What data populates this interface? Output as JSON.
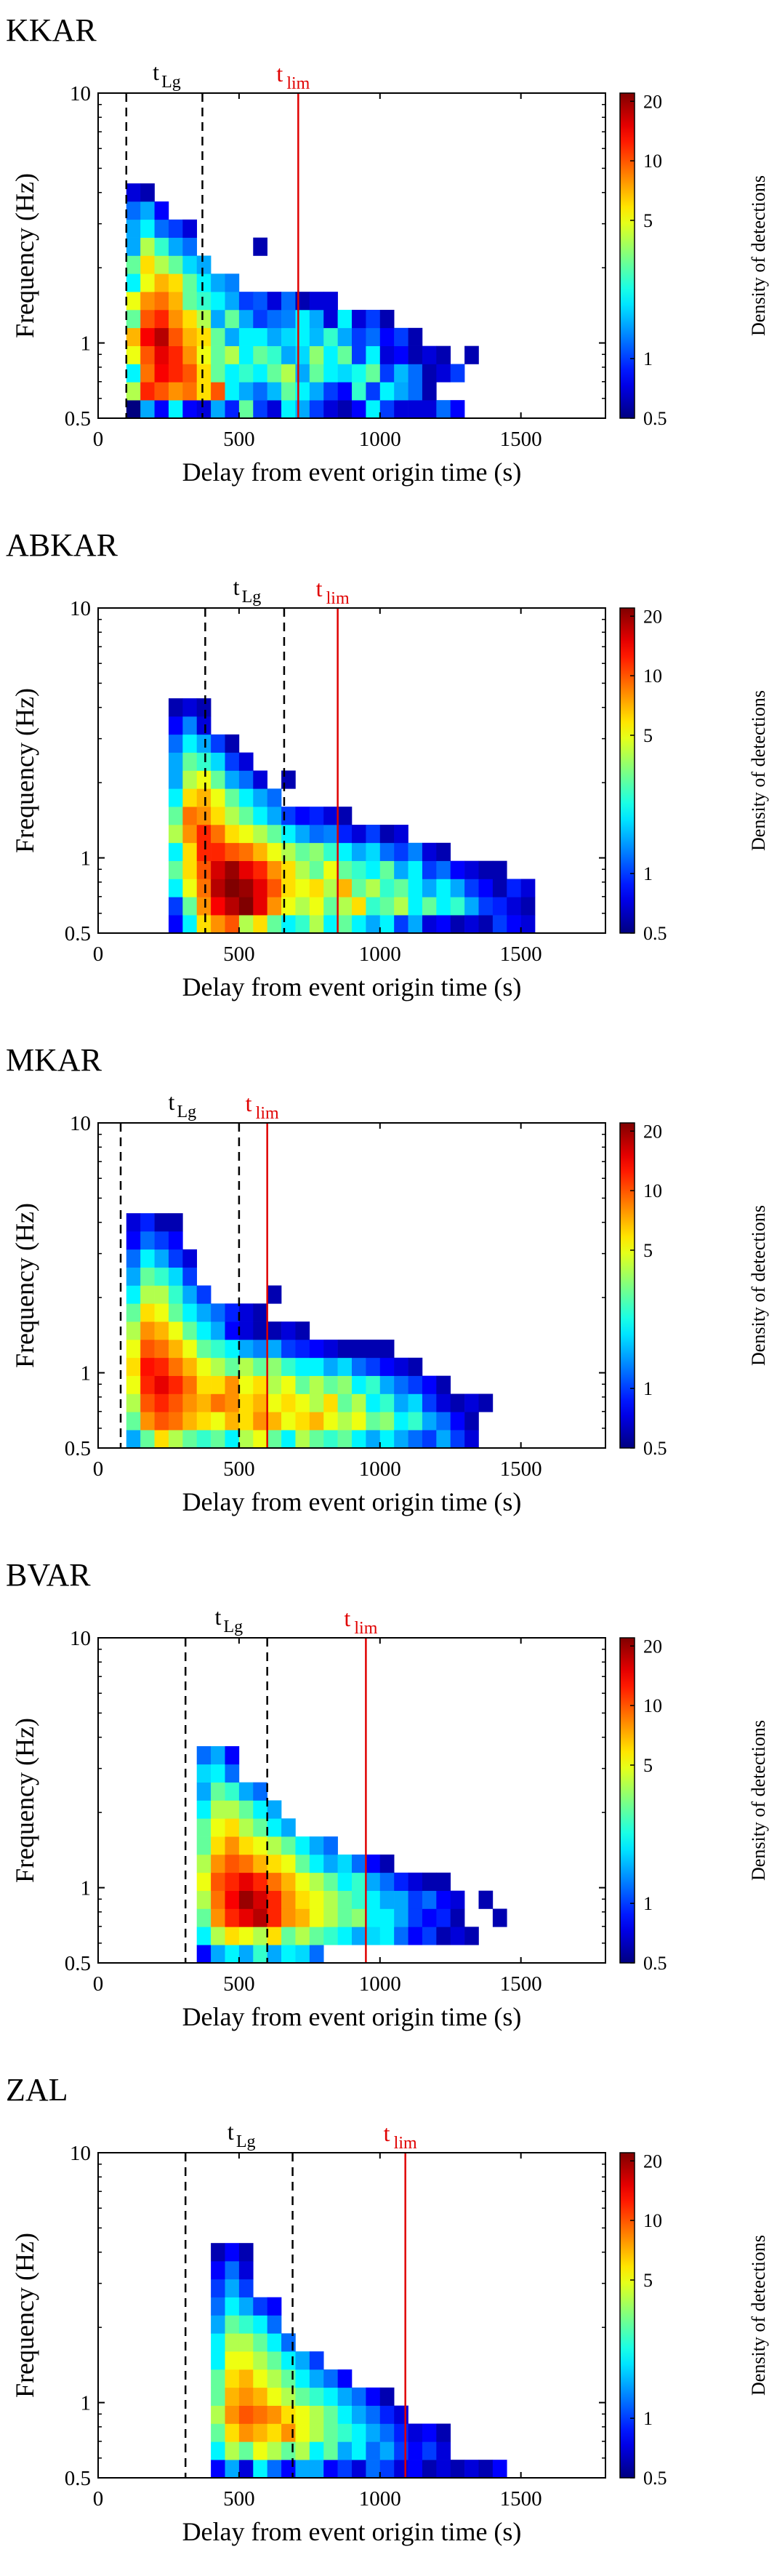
{
  "colorbar": {
    "label": "Density of detections",
    "ticks": [
      "0.5",
      "1",
      "5",
      "10",
      "20"
    ],
    "tick_values": [
      0.5,
      1,
      5,
      10,
      20
    ],
    "range": [
      0.5,
      22
    ]
  },
  "chart_data": [
    {
      "type": "heatmap",
      "title": "KKAR",
      "xlabel": "Delay from event origin time (s)",
      "ylabel": "Frequency (Hz)",
      "xlim": [
        0,
        1800
      ],
      "ylim": [
        0.5,
        10
      ],
      "yscale": "log",
      "xticks": [
        "0",
        "500",
        "1000",
        "1500"
      ],
      "yticks": [
        "0.5",
        "1",
        "10"
      ],
      "t_lg": [
        100,
        370
      ],
      "t_lim": 710,
      "t_lg_label": "t",
      "t_lg_sub": "Lg",
      "t_lim_label": "t",
      "t_lim_sub": "lim",
      "cells_by_row_from_0.5Hz": [
        "0:0,1:1.5,2:0.8,3:2,4:0.8,5:0.7,6:1.5,7:0.9,8:3,9:1,10:0.7,11:2,12:1.5,13:1,14:0.7,15:0.6,16:0.8,17:2,18:1,19:0.7,20:0.7,21:0.7,22:1.2,23:0.8",
        "0:4,1:12,2:10,3:8,4:9,5:6,6:10,7:2,8:1.5,9:1.2,10:1.6,11:3,12:2,13:1.5,14:1,15:0.8,16:2.5,17:1,18:2,19:1.5,20:1.2,21:0.6",
        "0:2,1:9,2:14,3:12,4:10,5:6,6:3,7:2,8:2.5,9:2,10:3,11:4,12:1.5,13:3,14:2,15:1.8,16:2.2,17:3,18:1,19:1.6,20:1.2,21:0.6,22:0.7,23:1",
        "0:5,1:10,2:15,3:12,4:8,5:5,6:3,7:4,8:2,9:3,10:2.5,11:1.5,12:1.8,13:3.5,14:2,15:3,16:1,17:2,18:0.7,19:0.8,20:0.6,21:0.7,22:0.6,24:0.6",
        "0:7,1:14,2:18,3:10,4:7,5:6,6:3,7:1.5,8:2,9:2,10:1.5,11:1.8,12:2,13:1.6,14:2.5,15:1.5,16:1,17:1.2,18:0.8,19:1,20:0.6",
        "0:3,1:10,2:12,3:8,4:6,5:4,6:1.5,7:3,8:1.5,9:1,10:1.2,11:1.3,12:2,13:1.5,14:0.7,15:2,16:0.7,17:1,18:0.6",
        "0:5,1:8,2:9,3:7,4:3,5:2.5,6:2,7:1.5,8:1,9:1.1,10:0.7,11:1.2,12:0.6,13:0.7,14:0.7",
        "0:2,1:5,2:7,3:6,4:3,5:2,6:1.5,7:1.3",
        "0:3,1:6,2:4,3:3,4:1.8,5:1.5",
        "0:1.5,1:4,2:2.5,3:1.5,4:1.2,9:0.6",
        "0:1.5,1:2,2:1.2,3:1,4:0.7",
        "0:1.2,1:1.5,2:0.8",
        "0:0.7,1:0.6"
      ],
      "x0": 100,
      "grid_visible": false,
      "legend": "colorbar right"
    },
    {
      "type": "heatmap",
      "title": "ABKAR",
      "xlabel": "Delay from event origin time (s)",
      "ylabel": "Frequency (Hz)",
      "xlim": [
        0,
        1800
      ],
      "ylim": [
        0.5,
        10
      ],
      "yscale": "log",
      "xticks": [
        "0",
        "500",
        "1000",
        "1500"
      ],
      "yticks": [
        "0.5",
        "1",
        "10"
      ],
      "t_lg": [
        380,
        660
      ],
      "t_lim": 850,
      "t_lg_label": "t",
      "t_lg_sub": "Lg",
      "t_lim_label": "t",
      "t_lim_sub": "lim",
      "cells_by_row_from_0.5Hz": [
        "3:0.8,4:2,5:6,6:8,7:10,8:4,9:6,10:3,11:2,12:2.5,13:4,14:2,15:3,16:2,17:1.5,18:2,19:1,20:1.5,21:0.7,22:0.8,23:0.6,24:0.7,25:0.6,26:1,27:0.8,28:0.7",
        "3:1,4:3,5:8,6:14,7:18,8:22,9:15,10:8,11:5,12:4,13:5,14:3,15:4,16:6,17:2.5,18:3,19:4,20:2,21:3,22:2,23:2.5,24:1.5,25:1,26:0.9,27:0.7,28:0.6",
        "3:2,4:5,5:9,6:18,7:22,8:20,9:15,10:10,11:6,12:5,13:6,14:4,15:7,16:3,17:4,18:2.5,19:3,20:2,21:1.5,22:2,23:1.5,24:1,25:0.8,26:0.6,27:0.9,28:0.7",
        "3:3,4:6,5:10,6:16,7:20,8:15,9:12,10:8,11:6,12:4,13:3,14:5,15:3,16:2.5,17:2,18:3,19:1.5,20:2,21:1,22:1.2,23:0.8,24:0.7,25:0.6,26:0.6",
        "3:2,4:6,5:12,6:12,7:10,8:9,9:7,10:5,11:4,12:3,13:3.5,14:2.5,15:2,16:1.5,17:1.8,18:1.2,19:1,20:1.3,21:0.7,22:0.6",
        "3:4,4:8,5:12,6:9,7:6,8:5,9:4,10:3,11:2,12:1.5,13:1.2,14:1.3,15:0.9,16:0.7,17:1,18:0.6,19:0.7",
        "3:3,4:9,5:8,6:6,7:4,8:3,9:2,10:1.5,11:1,12:0.8,13:0.9,14:0.7,15:0.6",
        "3:2,4:6,5:7,6:5,7:3,8:2,9:1.5,10:1.2",
        "3:1.5,4:4,5:5,6:3,7:1.5,8:1.2,9:0.7,11:0.6",
        "3:1.5,4:3,5:2.5,6:1.8,7:1,8:0.7",
        "3:1.2,4:2,5:1.5,6:1,7:0.6",
        "3:0.8,4:1.3,5:0.7",
        "3:0.6,4:0.7,5:0.6"
      ],
      "x0": 100,
      "grid_visible": false,
      "legend": "colorbar right"
    },
    {
      "type": "heatmap",
      "title": "MKAR",
      "xlabel": "Delay from event origin time (s)",
      "ylabel": "Frequency (Hz)",
      "xlim": [
        0,
        1800
      ],
      "ylim": [
        0.5,
        10
      ],
      "yscale": "log",
      "xticks": [
        "0",
        "500",
        "1000",
        "1500"
      ],
      "yticks": [
        "0.5",
        "1",
        "10"
      ],
      "t_lg": [
        80,
        500
      ],
      "t_lim": 600,
      "t_lg_label": "t",
      "t_lg_sub": "Lg",
      "t_lim_label": "t",
      "t_lim_sub": "lim",
      "cells_by_row_from_0.5Hz": [
        "0:1.5,1:3,2:6,3:4,4:3,5:2.5,6:3,7:2,8:4,9:5,10:3,11:2,12:4,13:3,14:2.5,15:3,16:2,17:1.5,18:2,19:1.5,20:1.2,21:1,22:1.5,23:1,24:0.7",
        "0:3,1:8,2:10,3:9,4:7,5:6,6:5,7:7,8:6,9:8,10:7,11:5,12:6,13:7,14:5,15:4,16:5,17:3,18:3.5,19:2,20:2.5,21:1.5,22:1.2,23:0.8,24:0.6",
        "0:4,1:10,2:12,3:10,4:8,5:7,6:9,7:8,8:6,9:7,10:5,11:6,12:5,13:4,14:6,15:3,16:4,17:2,18:2.5,19:1.5,20:1.8,21:1,22:0.7,23:0.6,24:0.7,25:0.6",
        "0:5,1:12,2:15,3:12,4:9,5:6,6:6,7:8,8:5,9:6,10:4,11:5,12:3,13:4,14:3,15:3.5,16:2,17:2.5,18:1.5,19:1.2,20:1,21:0.8,22:0.6",
        "0:6,1:13,2:12,3:9,4:7,5:5,6:4,7:3,8:4,9:3,10:3.5,11:2.5,12:2,13:2,14:1.5,15:1.8,16:1.2,17:1,18:0.8,19:0.7,20:0.6",
        "0:5,1:10,2:9,3:7,4:5,5:3,6:2.5,7:2,8:1.5,9:1.3,10:1.5,11:1,12:0.9,13:0.8,14:0.7,15:0.6,16:0.6,17:0.6,18:0.6",
        "0:4,1:8,2:7,3:5,4:3,5:2,6:1.5,7:0.8,8:0.7,9:0.6,10:0.6,11:0.7,12:0.6",
        "0:3,1:6,2:5,3:3,4:2,5:1.5,6:1.2,7:0.9,8:0.7,9:0.6",
        "0:2,1:4,2:4,3:2.5,4:1.5,5:1,10:0.6",
        "0:1.5,1:3,2:2.5,3:1.8,4:1",
        "0:1.2,1:2,2:1.5,3:1,4:0.7",
        "0:0.8,1:1.2,2:1,3:0.8",
        "0:0.7,1:0.9,2:0.6,3:0.6"
      ],
      "x0": 100,
      "grid_visible": false,
      "legend": "colorbar right"
    },
    {
      "type": "heatmap",
      "title": "BVAR",
      "xlabel": "Delay from event origin time (s)",
      "ylabel": "Frequency (Hz)",
      "xlim": [
        0,
        1800
      ],
      "ylim": [
        0.5,
        10
      ],
      "yscale": "log",
      "xticks": [
        "0",
        "500",
        "1000",
        "1500"
      ],
      "yticks": [
        "0.5",
        "1",
        "10"
      ],
      "t_lg": [
        310,
        600
      ],
      "t_lim": 950,
      "t_lg_label": "t",
      "t_lg_sub": "Lg",
      "t_lim_label": "t",
      "t_lim_sub": "lim",
      "cells_by_row_from_0.5Hz": [
        "5:0.8,6:1.5,7:2,8:1.5,9:2.5,10:1.5,11:2,12:1.8,13:1.2",
        "5:2,6:4,7:6,8:5,9:4,10:6,11:3,12:4,13:3,14:2.5,15:2,16:1.5,17:1.8,18:2,19:1.2,20:0.8,21:1,22:0.6,23:0.7,24:0.6",
        "5:3,6:8,7:12,8:15,9:18,10:12,11:8,12:7,13:5,14:4,15:3,16:3.5,17:2,18:2,19:1.5,20:1,21:0.8,22:0.9,23:0.6,26:0.6",
        "5:4,6:9,7:14,8:20,9:16,10:12,11:8,12:6,13:5,14:4,15:3,16:2.5,17:2,18:1.5,19:1.5,20:1,21:1.2,22:0.8,23:0.7,25:0.6",
        "5:5,6:10,7:12,8:15,9:12,10:9,11:7,12:5,13:4,14:3,15:2,16:2.5,17:1.5,18:1.2,19:0.9,20:0.7,21:0.6,22:0.6",
        "5:4,6:8,7:10,8:9,9:7,10:6,11:5,12:3,13:2,14:1.5,15:1.8,16:1.2,17:0.8,18:0.6",
        "5:3,6:6,7:8,8:6,9:5,10:4,11:3,12:2,13:1.5,14:1.2",
        "5:3,6:5,7:6,8:4,9:3,10:2,11:1.5",
        "5:2,6:4,7:4,8:3,9:2,10:1.5",
        "5:1.5,6:3,7:2.5,8:1.5,9:1.2",
        "5:1.8,6:2,7:1.2",
        "5:1.2,6:1.5,7:0.8"
      ],
      "x0": 100,
      "grid_visible": false,
      "legend": "colorbar right"
    },
    {
      "type": "heatmap",
      "title": "ZAL",
      "xlabel": "Delay from event origin time (s)",
      "ylabel": "Frequency (Hz)",
      "xlim": [
        0,
        1800
      ],
      "ylim": [
        0.5,
        10
      ],
      "yscale": "log",
      "xticks": [
        "0",
        "500",
        "1000",
        "1500"
      ],
      "yticks": [
        "0.5",
        "1",
        "10"
      ],
      "t_lg": [
        310,
        690
      ],
      "t_lim": 1090,
      "t_lg_label": "t",
      "t_lg_sub": "Lg",
      "t_lim_label": "t",
      "t_lim_sub": "lim",
      "cells_by_row_from_0.5Hz": [
        "6:0.8,7:1.5,8:0.7,9:2,10:1.2,11:0.8,12:1.5,13:1.5,14:0.8,15:1,16:0.7,17:1.2,18:1,19:0.7,20:0.8,21:0.6,22:0.7,23:0.6,24:0.7,25:0.6,26:0.8",
        "6:2,7:4,8:3,9:5,10:4,11:3,12:4,13:2,14:3,15:1.5,16:2,17:1.2,18:1.5,19:1,20:0.8,21:1,22:0.7",
        "6:3,7:6,8:8,9:7,10:6,11:8,12:5,13:4,14:3,15:2.5,16:2,17:1.5,18:1.2,19:0.9,20:0.7,21:0.8,22:0.6",
        "6:4,7:8,8:10,9:9,10:8,11:6,12:5,13:4,14:3,15:2,16:1.5,17:1.2,18:0.9,19:0.7",
        "6:3,7:7,8:8,9:7,10:5,11:4,12:3,13:2.5,14:2,15:1.5,16:1.2,17:0.8,18:0.6",
        "6:3,7:6,8:7,9:5,10:4,11:3,12:2,13:1.5,14:1.2,15:0.8",
        "6:2,7:5,8:5,9:4,10:3,11:2,12:1.5,13:1",
        "6:2,7:4,8:4,9:3,10:2,11:1.2",
        "6:1.5,7:3,8:2.5,9:2,10:1.2",
        "6:1.2,7:2,8:1.5,9:1,10:0.8",
        "6:1,7:1.5,8:1",
        "6:0.8,7:1.2,8:0.7",
        "6:0.6,7:0.8,8:0.6"
      ],
      "x0": 100,
      "grid_visible": false,
      "legend": "colorbar right"
    }
  ]
}
